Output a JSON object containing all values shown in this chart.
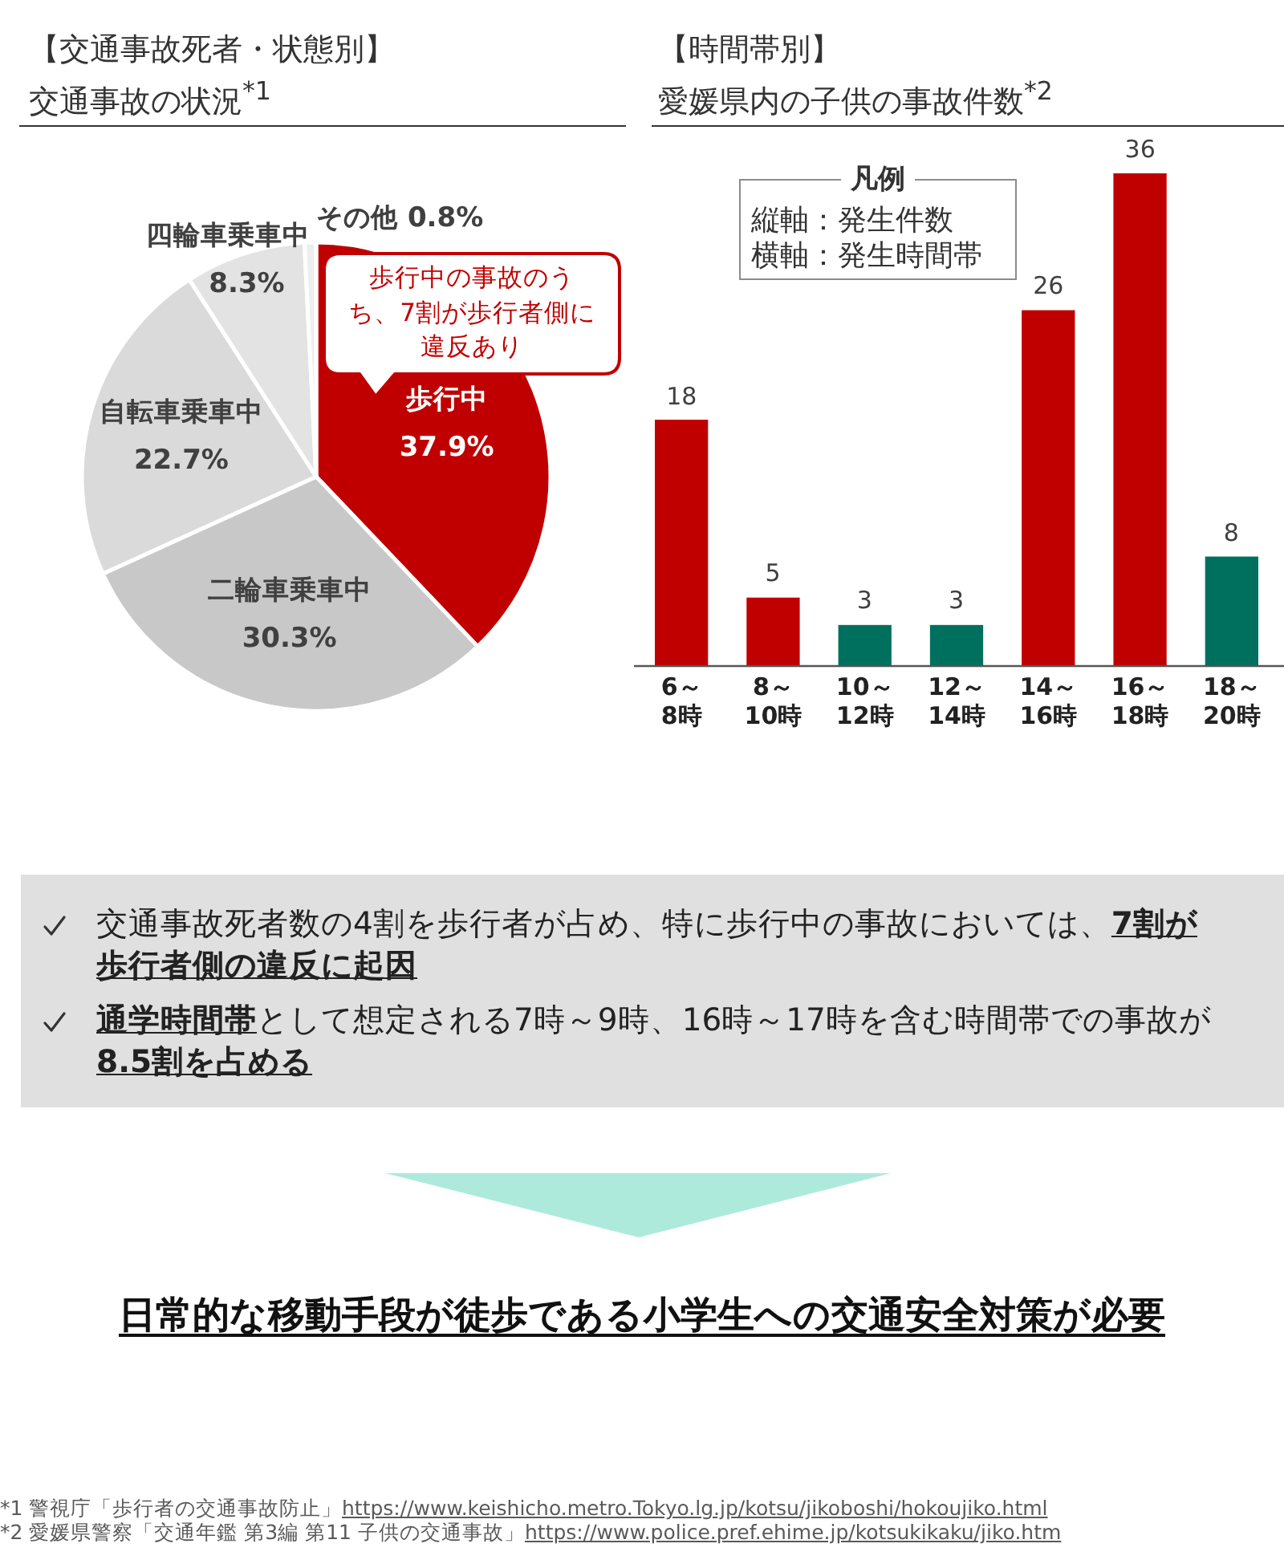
{
  "chart_data": [
    {
      "type": "pie",
      "title": "【交通事故死者・状態別】",
      "subtitle": "交通事故の状況$^{*1}$",
      "categories": [
        "歩行中",
        "二輪車乗車中",
        "自転車乗車中",
        "四輪車乗車中",
        "その他"
      ],
      "values": [
        37.9,
        30.3,
        22.7,
        8.3,
        0.8
      ],
      "colors": [
        "#c00000",
        "#c8c8c8",
        "#dadada",
        "#e3e3e3",
        "#eeeeee"
      ],
      "value_labels": [
        "37.9%",
        "30.3%",
        "22.7%",
        "8.3%",
        "0.8%"
      ],
      "annotations": [
        "歩行中の事故のうち、7割が歩行者側に違反あり"
      ]
    },
    {
      "type": "bar",
      "title": "【時間帯別】",
      "subtitle": "愛媛県内の子供の事故件数$^{*2}$",
      "categories": [
        "6～8時",
        "8～10時",
        "10～12時",
        "12～14時",
        "14～16時",
        "16～18時",
        "18～20時"
      ],
      "values": [
        18,
        5,
        3,
        3,
        26,
        36,
        8
      ],
      "colors": [
        "#c00000",
        "#c00000",
        "#00705e",
        "#00705e",
        "#c00000",
        "#c00000",
        "#00705e"
      ],
      "data_labels": true,
      "tick_labels": "x",
      "annotations": [
        "凡例",
        "縦軸：発生件数",
        "横軸：発生時間帯"
      ]
    },
    {
      "type": "other",
      "annotations": [
        "交通事故死者数の4割を歩行者が占め、特に歩行中の事故においては、**7割が歩行者側の違反に起因**",
        "**通学時間帯**として想定される7時～9時、16時～17時を含む時間帯での事故が**8.5割を占める**",
        "日常的な移動手段が徒歩である小学生への交通安全対策が必要",
        "*1 警視庁「歩行者の交通事故防止」",
        "https://www.keishicho.metro.Tokyo.lg.jp/kotsu/jikoboshi/hokoujiko.html",
        "*2 愛媛県警察「交通年鑑 第3編 第11 子供の交通事故」",
        "https://www.police.pref.ehime.jp/kotsukikaku/jiko.htm"
      ]
    }
  ]
}
